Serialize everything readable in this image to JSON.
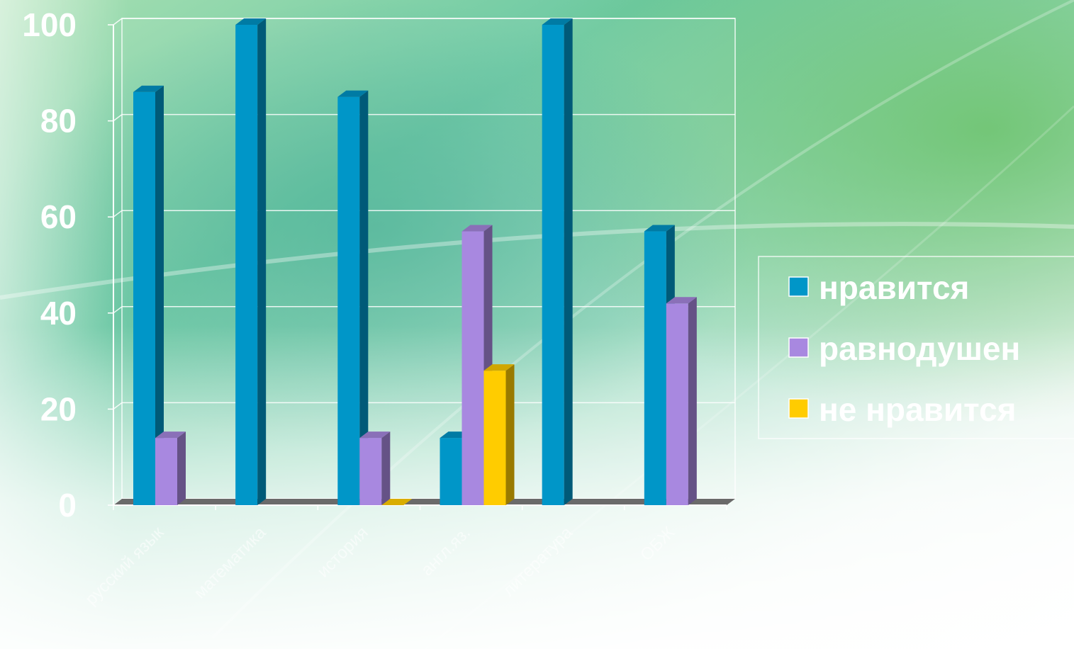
{
  "chart_data": {
    "type": "bar",
    "categories": [
      "русский язык",
      "математика",
      "история",
      "англ.яз.",
      "литература",
      "ОБЖ"
    ],
    "series": [
      {
        "name": "нравится",
        "values": [
          86,
          100,
          85,
          14,
          100,
          57
        ],
        "color": "#0096c8"
      },
      {
        "name": "равнодушен",
        "values": [
          14,
          0,
          14,
          57,
          0,
          42
        ],
        "color": "#a888e0"
      },
      {
        "name": "не нравится",
        "values": [
          0,
          0,
          0,
          28,
          0,
          0
        ],
        "color": "#ffcc00"
      }
    ],
    "yticks": [
      "0",
      "20",
      "40",
      "60",
      "80",
      "100"
    ],
    "ylim": [
      0,
      100
    ],
    "grid": true,
    "legend_position": "right",
    "three_d": true
  }
}
